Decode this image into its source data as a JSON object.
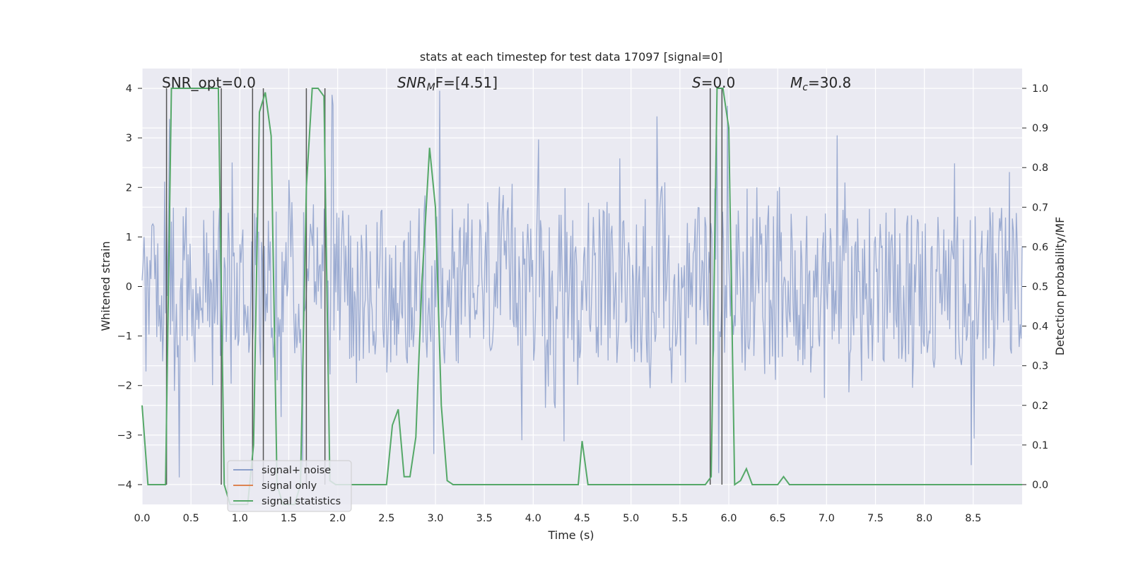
{
  "chart_data": {
    "type": "line",
    "title": "stats at each timestep for test data 17097 [signal=0]",
    "xlabel": "Time (s)",
    "ylabel_left": "Whitened strain",
    "ylabel_right": "Detection probability/MF",
    "xlim": [
      0.0,
      9.0
    ],
    "ylim_left": [
      -4.4,
      4.4
    ],
    "ylim_right": [
      -0.05,
      1.05
    ],
    "x_ticks": [
      0.0,
      0.5,
      1.0,
      1.5,
      2.0,
      2.5,
      3.0,
      3.5,
      4.0,
      4.5,
      5.0,
      5.5,
      6.0,
      6.5,
      7.0,
      7.5,
      8.0,
      8.5
    ],
    "x_tick_labels": [
      "0.0",
      "0.5",
      "1.0",
      "1.5",
      "2.0",
      "2.5",
      "3.0",
      "3.5",
      "4.0",
      "4.5",
      "5.0",
      "5.5",
      "6.0",
      "6.5",
      "7.0",
      "7.5",
      "8.0",
      "8.5"
    ],
    "y_left_ticks": [
      4,
      3,
      2,
      1,
      0,
      -1,
      -2,
      -3,
      -4
    ],
    "y_left_tick_labels": [
      "4",
      "3",
      "2",
      "1",
      "0",
      "−1",
      "−2",
      "−3",
      "−4"
    ],
    "y_right_ticks": [
      1.0,
      0.9,
      0.8,
      0.7,
      0.6,
      0.5,
      0.4,
      0.3,
      0.2,
      0.1,
      0.0
    ],
    "y_right_tick_labels": [
      "1.0",
      "0.9",
      "0.8",
      "0.7",
      "0.6",
      "0.5",
      "0.4",
      "0.3",
      "0.2",
      "0.1",
      "0.0"
    ],
    "annotations": {
      "snr_opt": "SNR_opt=0.0",
      "snr_mf_prefix": "SNR",
      "snr_mf_sub": "M",
      "snr_mf_suffix": "F=[4.51]",
      "s_label": "S",
      "s_value": "=0.0",
      "mc_label": "M",
      "mc_sub": "c",
      "mc_value": "=30.8"
    },
    "legend": {
      "location": "lower-left",
      "entries": [
        {
          "label": "signal+ noise",
          "color": "#8da0cb"
        },
        {
          "label": "signal only",
          "color": "#dd8452"
        },
        {
          "label": "signal statistics",
          "color": "#55a868"
        }
      ]
    },
    "series": [
      {
        "name": "signal statistics",
        "axis": "right",
        "color": "#55a868",
        "x": [
          0.0,
          0.06,
          0.12,
          0.18,
          0.24,
          0.3,
          0.36,
          0.42,
          0.48,
          0.54,
          0.6,
          0.66,
          0.72,
          0.78,
          0.84,
          0.9,
          0.96,
          1.02,
          1.08,
          1.14,
          1.2,
          1.26,
          1.32,
          1.38,
          1.44,
          1.5,
          1.56,
          1.62,
          1.68,
          1.74,
          1.8,
          1.86,
          1.92,
          1.98,
          2.04,
          2.1,
          2.5,
          2.56,
          2.62,
          2.68,
          2.74,
          2.8,
          2.86,
          2.94,
          3.0,
          3.06,
          3.12,
          3.18,
          3.24,
          3.5,
          3.7,
          4.0,
          4.4,
          4.46,
          4.5,
          4.56,
          4.62,
          5.0,
          5.5,
          5.76,
          5.82,
          5.88,
          5.94,
          6.0,
          6.06,
          6.12,
          6.18,
          6.24,
          6.3,
          6.36,
          6.5,
          6.56,
          6.62,
          6.7,
          7.0,
          8.0,
          9.0
        ],
        "y": [
          0.2,
          0.0,
          0.0,
          0.0,
          0.0,
          1.0,
          1.0,
          1.0,
          1.0,
          1.0,
          1.0,
          1.0,
          1.0,
          1.0,
          0.0,
          -0.05,
          -0.05,
          -0.05,
          -0.05,
          0.1,
          0.94,
          0.99,
          0.88,
          0.0,
          -0.05,
          -0.05,
          -0.05,
          0.0,
          0.75,
          1.0,
          1.0,
          0.98,
          0.01,
          0.0,
          0.0,
          0.0,
          0.0,
          0.15,
          0.19,
          0.02,
          0.02,
          0.12,
          0.5,
          0.85,
          0.7,
          0.2,
          0.01,
          0.0,
          0.0,
          0.0,
          0.0,
          0.0,
          0.0,
          0.0,
          0.11,
          0.0,
          0.0,
          0.0,
          0.0,
          0.0,
          0.02,
          1.0,
          1.0,
          0.9,
          0.0,
          0.01,
          0.04,
          0.0,
          0.0,
          0.0,
          0.0,
          0.02,
          0.0,
          0.0,
          0.0,
          0.0,
          0.0
        ]
      },
      {
        "name": "signal+ noise",
        "axis": "left",
        "color": "#8da0cb",
        "description_of_data": "whitened strain noise, roughly +/-1.7 with spikes to +/-4",
        "sample_count": 900,
        "amplitude_typical": 1.6,
        "amplitude_peak": 4.0
      }
    ],
    "vertical_markers_x": [
      0.25,
      0.81,
      1.13,
      1.24,
      1.68,
      1.87,
      5.81,
      5.93
    ]
  }
}
